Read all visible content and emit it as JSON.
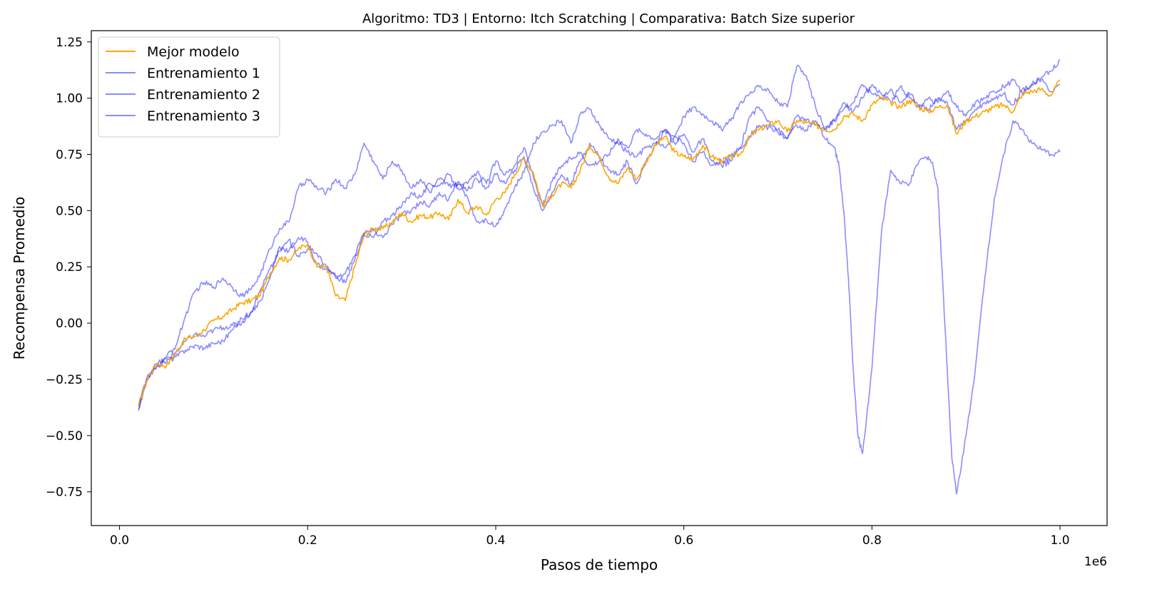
{
  "chart_data": {
    "type": "line",
    "title": "Algoritmo: TD3 | Entorno: Itch Scratching | Comparativa: Batch Size superior",
    "xlabel": "Pasos de tiempo",
    "ylabel": "Recompensa Promedio",
    "x_offset_label": "1e6",
    "xlim": [
      -0.03,
      1.05
    ],
    "ylim": [
      -0.9,
      1.3
    ],
    "x_ticks": [
      0.0,
      0.2,
      0.4,
      0.6,
      0.8,
      1.0
    ],
    "x_tick_labels": [
      "0.0",
      "0.2",
      "0.4",
      "0.6",
      "0.8",
      "1.0"
    ],
    "y_ticks": [
      -0.75,
      -0.5,
      -0.25,
      0.0,
      0.25,
      0.5,
      0.75,
      1.0,
      1.25
    ],
    "y_tick_labels": [
      "−0.75",
      "−0.50",
      "−0.25",
      "0.00",
      "0.25",
      "0.50",
      "0.75",
      "1.00",
      "1.25"
    ],
    "grid": false,
    "legend_position": "upper-left",
    "series": [
      {
        "name": "Mejor modelo",
        "color": "#ffa500",
        "opacity": 1.0,
        "x": [
          0.02,
          0.03,
          0.04,
          0.05,
          0.06,
          0.07,
          0.08,
          0.09,
          0.1,
          0.11,
          0.12,
          0.13,
          0.14,
          0.15,
          0.16,
          0.17,
          0.18,
          0.19,
          0.2,
          0.21,
          0.22,
          0.23,
          0.24,
          0.25,
          0.26,
          0.27,
          0.28,
          0.29,
          0.3,
          0.31,
          0.32,
          0.33,
          0.34,
          0.35,
          0.36,
          0.37,
          0.38,
          0.39,
          0.4,
          0.41,
          0.42,
          0.43,
          0.44,
          0.45,
          0.46,
          0.47,
          0.48,
          0.49,
          0.5,
          0.51,
          0.52,
          0.53,
          0.54,
          0.55,
          0.56,
          0.57,
          0.58,
          0.59,
          0.6,
          0.61,
          0.62,
          0.63,
          0.64,
          0.65,
          0.66,
          0.67,
          0.68,
          0.69,
          0.7,
          0.71,
          0.72,
          0.73,
          0.74,
          0.75,
          0.76,
          0.77,
          0.78,
          0.79,
          0.8,
          0.81,
          0.82,
          0.83,
          0.84,
          0.85,
          0.86,
          0.87,
          0.88,
          0.89,
          0.9,
          0.91,
          0.92,
          0.93,
          0.94,
          0.95,
          0.96,
          0.97,
          0.98,
          0.99,
          1.0
        ],
        "y": [
          -0.37,
          -0.24,
          -0.18,
          -0.19,
          -0.13,
          -0.07,
          -0.06,
          -0.03,
          0.01,
          0.03,
          0.06,
          0.09,
          0.1,
          0.13,
          0.22,
          0.29,
          0.28,
          0.33,
          0.35,
          0.25,
          0.25,
          0.12,
          0.1,
          0.25,
          0.39,
          0.42,
          0.42,
          0.45,
          0.49,
          0.45,
          0.48,
          0.47,
          0.49,
          0.46,
          0.55,
          0.49,
          0.52,
          0.48,
          0.55,
          0.58,
          0.66,
          0.73,
          0.67,
          0.52,
          0.57,
          0.62,
          0.6,
          0.68,
          0.79,
          0.74,
          0.65,
          0.62,
          0.69,
          0.64,
          0.72,
          0.79,
          0.83,
          0.76,
          0.74,
          0.73,
          0.79,
          0.74,
          0.72,
          0.74,
          0.75,
          0.83,
          0.86,
          0.88,
          0.9,
          0.85,
          0.9,
          0.89,
          0.88,
          0.86,
          0.86,
          0.92,
          0.93,
          0.9,
          0.97,
          1.0,
          0.98,
          0.96,
          0.99,
          0.96,
          0.94,
          0.96,
          0.97,
          0.84,
          0.9,
          0.92,
          0.94,
          0.96,
          0.97,
          0.94,
          1.02,
          1.03,
          1.04,
          1.01,
          1.08
        ]
      },
      {
        "name": "Entrenamiento 1",
        "color": "#0000ff",
        "opacity": 0.45,
        "x": [
          0.02,
          0.03,
          0.04,
          0.05,
          0.06,
          0.07,
          0.08,
          0.09,
          0.1,
          0.11,
          0.12,
          0.13,
          0.14,
          0.15,
          0.16,
          0.17,
          0.18,
          0.19,
          0.2,
          0.21,
          0.22,
          0.23,
          0.24,
          0.25,
          0.26,
          0.27,
          0.28,
          0.29,
          0.3,
          0.31,
          0.32,
          0.33,
          0.34,
          0.35,
          0.36,
          0.37,
          0.38,
          0.39,
          0.4,
          0.41,
          0.42,
          0.43,
          0.44,
          0.45,
          0.46,
          0.47,
          0.48,
          0.49,
          0.5,
          0.51,
          0.52,
          0.53,
          0.54,
          0.55,
          0.56,
          0.57,
          0.58,
          0.59,
          0.6,
          0.61,
          0.62,
          0.63,
          0.64,
          0.65,
          0.66,
          0.67,
          0.68,
          0.69,
          0.7,
          0.71,
          0.72,
          0.73,
          0.74,
          0.75,
          0.76,
          0.765,
          0.77,
          0.775,
          0.78,
          0.785,
          0.79,
          0.8,
          0.81,
          0.82,
          0.83,
          0.84,
          0.85,
          0.86,
          0.865,
          0.87,
          0.875,
          0.88,
          0.885,
          0.89,
          0.9,
          0.91,
          0.92,
          0.93,
          0.94,
          0.95,
          0.96,
          0.97,
          0.98,
          0.99,
          1.0
        ],
        "y": [
          -0.38,
          -0.25,
          -0.19,
          -0.15,
          -0.1,
          0.03,
          0.14,
          0.18,
          0.16,
          0.2,
          0.16,
          0.12,
          0.15,
          0.22,
          0.33,
          0.42,
          0.45,
          0.6,
          0.64,
          0.6,
          0.58,
          0.64,
          0.6,
          0.66,
          0.8,
          0.72,
          0.64,
          0.72,
          0.68,
          0.6,
          0.64,
          0.58,
          0.64,
          0.61,
          0.62,
          0.56,
          0.45,
          0.46,
          0.43,
          0.51,
          0.6,
          0.67,
          0.8,
          0.85,
          0.88,
          0.9,
          0.8,
          0.93,
          0.95,
          0.88,
          0.82,
          0.8,
          0.76,
          0.74,
          0.78,
          0.8,
          0.78,
          0.83,
          0.8,
          0.72,
          0.76,
          0.7,
          0.72,
          0.74,
          0.78,
          0.83,
          0.88,
          0.87,
          0.85,
          0.82,
          0.88,
          0.86,
          0.9,
          0.82,
          0.78,
          0.7,
          0.5,
          0.2,
          -0.2,
          -0.5,
          -0.58,
          -0.2,
          0.4,
          0.68,
          0.62,
          0.62,
          0.72,
          0.74,
          0.7,
          0.6,
          0.2,
          -0.2,
          -0.6,
          -0.76,
          -0.5,
          -0.2,
          0.2,
          0.55,
          0.75,
          0.9,
          0.86,
          0.8,
          0.77,
          0.75,
          0.76
        ]
      },
      {
        "name": "Entrenamiento 2",
        "color": "#0000ff",
        "opacity": 0.45,
        "x": [
          0.02,
          0.03,
          0.04,
          0.05,
          0.06,
          0.07,
          0.08,
          0.09,
          0.1,
          0.11,
          0.12,
          0.13,
          0.14,
          0.15,
          0.16,
          0.17,
          0.18,
          0.19,
          0.2,
          0.21,
          0.22,
          0.23,
          0.24,
          0.25,
          0.26,
          0.27,
          0.28,
          0.29,
          0.3,
          0.31,
          0.32,
          0.33,
          0.34,
          0.35,
          0.36,
          0.37,
          0.38,
          0.39,
          0.4,
          0.41,
          0.42,
          0.43,
          0.44,
          0.45,
          0.46,
          0.47,
          0.48,
          0.49,
          0.5,
          0.51,
          0.52,
          0.53,
          0.54,
          0.55,
          0.56,
          0.57,
          0.58,
          0.59,
          0.6,
          0.61,
          0.62,
          0.63,
          0.64,
          0.65,
          0.66,
          0.67,
          0.68,
          0.69,
          0.7,
          0.71,
          0.72,
          0.73,
          0.74,
          0.75,
          0.76,
          0.77,
          0.78,
          0.79,
          0.8,
          0.81,
          0.82,
          0.83,
          0.84,
          0.85,
          0.86,
          0.87,
          0.88,
          0.89,
          0.9,
          0.91,
          0.92,
          0.93,
          0.94,
          0.95,
          0.96,
          0.97,
          0.98,
          0.99,
          1.0
        ],
        "y": [
          -0.39,
          -0.24,
          -0.19,
          -0.17,
          -0.15,
          -0.12,
          -0.1,
          -0.11,
          -0.09,
          -0.08,
          -0.03,
          0.02,
          0.05,
          0.15,
          0.24,
          0.32,
          0.37,
          0.3,
          0.33,
          0.31,
          0.25,
          0.2,
          0.22,
          0.3,
          0.4,
          0.38,
          0.45,
          0.48,
          0.52,
          0.58,
          0.56,
          0.62,
          0.61,
          0.66,
          0.6,
          0.62,
          0.67,
          0.62,
          0.72,
          0.66,
          0.7,
          0.78,
          0.65,
          0.52,
          0.63,
          0.7,
          0.73,
          0.76,
          0.7,
          0.72,
          0.75,
          0.82,
          0.78,
          0.86,
          0.84,
          0.82,
          0.86,
          0.83,
          0.92,
          0.96,
          0.93,
          0.9,
          0.86,
          0.9,
          0.98,
          1.02,
          1.05,
          1.04,
          0.98,
          0.96,
          1.14,
          1.1,
          0.96,
          0.86,
          0.9,
          0.98,
          0.94,
          1.0,
          1.06,
          1.02,
          0.98,
          1.05,
          1.0,
          0.96,
          1.0,
          0.98,
          1.03,
          0.96,
          0.92,
          0.98,
          1.0,
          1.03,
          1.05,
          1.08,
          1.02,
          1.06,
          1.09,
          1.12,
          1.17
        ]
      },
      {
        "name": "Entrenamiento 3",
        "color": "#0000ff",
        "opacity": 0.45,
        "x": [
          0.02,
          0.03,
          0.04,
          0.05,
          0.06,
          0.07,
          0.08,
          0.09,
          0.1,
          0.11,
          0.12,
          0.13,
          0.14,
          0.15,
          0.16,
          0.17,
          0.18,
          0.19,
          0.2,
          0.21,
          0.22,
          0.23,
          0.24,
          0.25,
          0.26,
          0.27,
          0.28,
          0.29,
          0.3,
          0.31,
          0.32,
          0.33,
          0.34,
          0.35,
          0.36,
          0.37,
          0.38,
          0.39,
          0.4,
          0.41,
          0.42,
          0.43,
          0.44,
          0.45,
          0.46,
          0.47,
          0.48,
          0.49,
          0.5,
          0.51,
          0.52,
          0.53,
          0.54,
          0.55,
          0.56,
          0.57,
          0.58,
          0.59,
          0.6,
          0.61,
          0.62,
          0.63,
          0.64,
          0.65,
          0.66,
          0.67,
          0.68,
          0.69,
          0.7,
          0.71,
          0.72,
          0.73,
          0.74,
          0.75,
          0.76,
          0.77,
          0.78,
          0.79,
          0.8,
          0.81,
          0.82,
          0.83,
          0.84,
          0.85,
          0.86,
          0.87,
          0.88,
          0.89,
          0.9,
          0.91,
          0.92,
          0.93,
          0.94,
          0.95,
          0.96,
          0.97,
          0.98,
          0.99,
          1.0
        ],
        "y": [
          -0.37,
          -0.23,
          -0.18,
          -0.16,
          -0.13,
          -0.08,
          -0.05,
          -0.06,
          -0.03,
          -0.02,
          -0.01,
          0.0,
          0.05,
          0.1,
          0.2,
          0.34,
          0.32,
          0.38,
          0.36,
          0.26,
          0.24,
          0.21,
          0.18,
          0.28,
          0.4,
          0.41,
          0.38,
          0.44,
          0.48,
          0.5,
          0.54,
          0.52,
          0.58,
          0.55,
          0.63,
          0.59,
          0.64,
          0.6,
          0.66,
          0.62,
          0.68,
          0.74,
          0.6,
          0.5,
          0.58,
          0.66,
          0.62,
          0.72,
          0.8,
          0.74,
          0.68,
          0.66,
          0.72,
          0.62,
          0.72,
          0.79,
          0.86,
          0.8,
          0.84,
          0.76,
          0.82,
          0.72,
          0.7,
          0.72,
          0.78,
          0.92,
          0.96,
          0.9,
          0.86,
          0.82,
          0.92,
          0.9,
          0.88,
          0.86,
          0.9,
          0.95,
          0.98,
          1.06,
          1.02,
          1.0,
          1.04,
          0.98,
          1.02,
          0.97,
          0.95,
          1.0,
          0.98,
          0.86,
          0.9,
          0.95,
          0.98,
          1.0,
          1.02,
          0.97,
          1.04,
          1.06,
          1.08,
          1.03,
          1.06
        ]
      }
    ]
  }
}
